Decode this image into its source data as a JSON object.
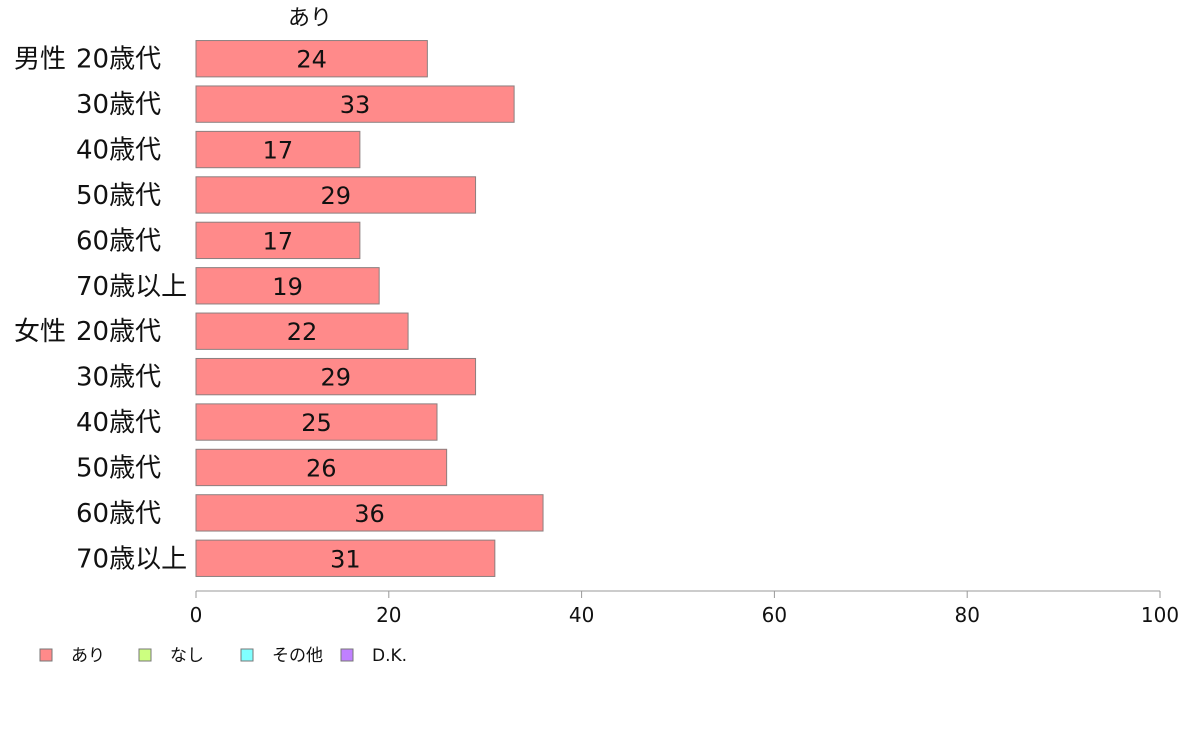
{
  "chart_data": {
    "type": "bar",
    "orientation": "horizontal",
    "stacked": true,
    "groups": [
      {
        "label": "男性",
        "categories": [
          "20歳代",
          "30歳代",
          "40歳代",
          "50歳代",
          "60歳代",
          "70歳以上"
        ]
      },
      {
        "label": "女性",
        "categories": [
          "20歳代",
          "30歳代",
          "40歳代",
          "50歳代",
          "60歳代",
          "70歳以上"
        ]
      }
    ],
    "series": [
      {
        "name": "あり",
        "color": "#ff8a8a",
        "values": [
          24,
          33,
          17,
          29,
          17,
          19,
          22,
          29,
          25,
          26,
          36,
          31
        ]
      }
    ],
    "series_header": "あり",
    "xlim": [
      0,
      100
    ],
    "xticks": [
      "0",
      "20",
      "40",
      "60",
      "80",
      "100"
    ],
    "grid": false,
    "legend": {
      "position": "bottom-left",
      "entries": [
        {
          "label": "あり",
          "color": "#ff8a8a"
        },
        {
          "label": "なし",
          "color": "#ccff80"
        },
        {
          "label": "その他",
          "color": "#80ffff"
        },
        {
          "label": "D.K.",
          "color": "#c080ff"
        }
      ]
    }
  }
}
